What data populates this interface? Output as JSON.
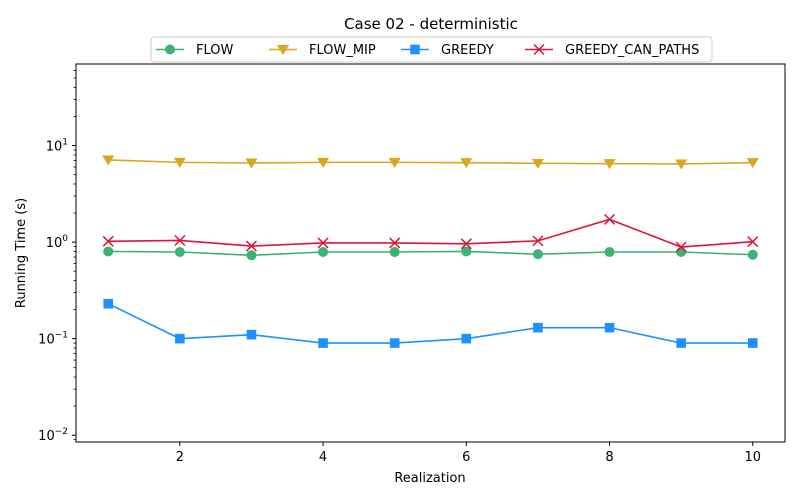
{
  "chart_data": {
    "type": "line",
    "title": "Case 02 - deterministic",
    "xlabel": "Realization",
    "ylabel": "Running Time (s)",
    "yscale": "log",
    "xlim": [
      0.55,
      10.45
    ],
    "ylim": [
      0.0085,
      70
    ],
    "x": [
      1,
      2,
      3,
      4,
      5,
      6,
      7,
      8,
      9,
      10
    ],
    "x_ticks": [
      2,
      4,
      6,
      8,
      10
    ],
    "y_ticks": [
      0.01,
      0.1,
      1,
      10
    ],
    "y_tick_labels": [
      {
        "base": "10",
        "exp": "−2"
      },
      {
        "base": "10",
        "exp": "−1"
      },
      {
        "base": "10",
        "exp": "0"
      },
      {
        "base": "10",
        "exp": "1"
      }
    ],
    "legend_position": "top-center",
    "grid": false,
    "series": [
      {
        "name": "FLOW",
        "color": "#3cb371",
        "marker": "circle",
        "values": [
          0.8,
          0.79,
          0.73,
          0.79,
          0.79,
          0.8,
          0.75,
          0.79,
          0.79,
          0.74
        ]
      },
      {
        "name": "FLOW_MIP",
        "color": "#daa520",
        "marker": "triangle-down",
        "values": [
          7.1,
          6.7,
          6.6,
          6.7,
          6.7,
          6.65,
          6.55,
          6.5,
          6.45,
          6.65
        ]
      },
      {
        "name": "GREEDY",
        "color": "#1e90ff",
        "marker": "square",
        "values": [
          0.23,
          0.1,
          0.11,
          0.09,
          0.09,
          0.1,
          0.13,
          0.13,
          0.09,
          0.09
        ]
      },
      {
        "name": "GREEDY_CAN_PATHS",
        "color": "#dc143c",
        "marker": "x",
        "values": [
          1.02,
          1.04,
          0.91,
          0.98,
          0.98,
          0.96,
          1.03,
          1.72,
          0.89,
          1.01
        ]
      }
    ]
  }
}
